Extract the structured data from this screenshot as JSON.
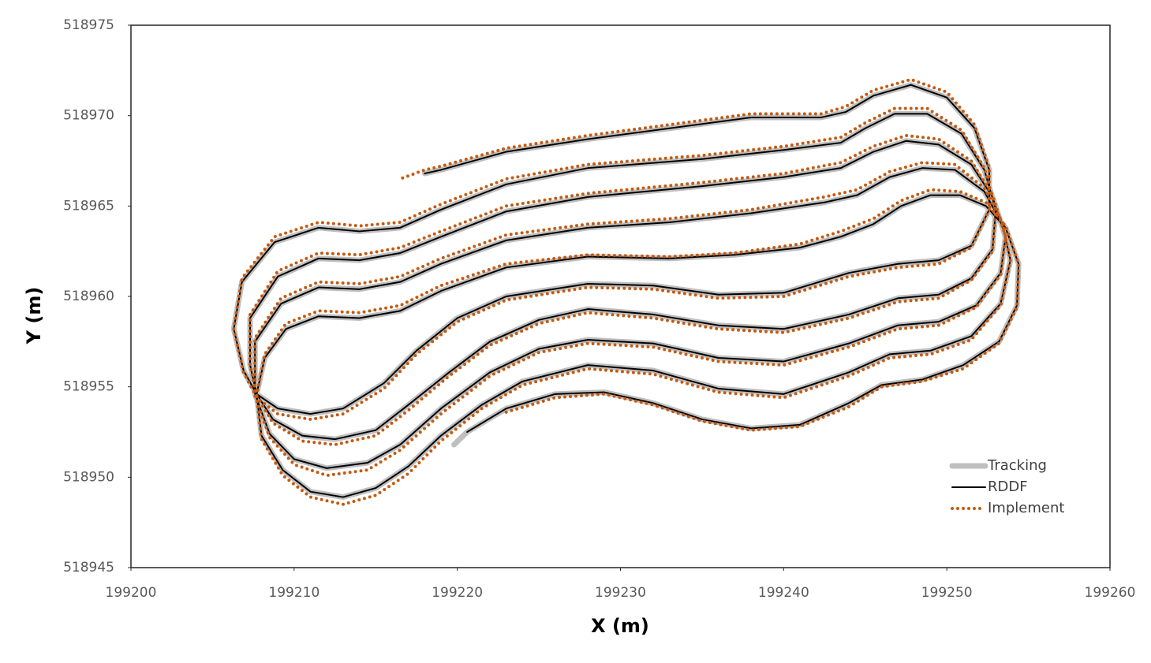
{
  "chart_data": {
    "type": "line",
    "xlabel": "X (m)",
    "ylabel": "Y (m)",
    "xlim": [
      199200,
      199260
    ],
    "ylim": [
      518945,
      518975
    ],
    "xticks": [
      199200,
      199210,
      199220,
      199230,
      199240,
      199250,
      199260
    ],
    "yticks": [
      518945,
      518950,
      518955,
      518960,
      518965,
      518970,
      518975
    ],
    "grid": false,
    "legend": "lower right",
    "x": [
      199219.8,
      199220.6,
      199223,
      199226,
      199229,
      199232,
      199235,
      199238,
      199241,
      199244,
      199246,
      199248.5,
      199251,
      199253.2,
      199254.3,
      199254.4,
      199253.6,
      199252.4,
      199250.8,
      199249,
      199247.2,
      199245.5,
      199243.5,
      199241,
      199237,
      199233,
      199228,
      199223,
      199219,
      199216.5,
      199214,
      199211.5,
      199209.5,
      199208.2,
      199207.7,
      199208,
      199209.3,
      199211,
      199213,
      199215,
      199217,
      199219,
      199221.5,
      199224,
      199228,
      199232,
      199236,
      199240,
      199244,
      199246.5,
      199249,
      199251.5,
      199253.3,
      199253.9,
      199253.4,
      199252.3,
      199250.5,
      199248.5,
      199246.5,
      199244.5,
      199242.5,
      199238,
      199233,
      199228,
      199223,
      199219,
      199216.5,
      199214,
      199211.5,
      199209.2,
      199207.6,
      199207.6,
      199208.5,
      199210,
      199212,
      199214.5,
      199216.5,
      199219,
      199222,
      199225,
      199228,
      199232,
      199236,
      199240,
      199244,
      199247,
      199249.5,
      199251.8,
      199253.3,
      199253.6,
      199252.8,
      199251.5,
      199249.5,
      199247.5,
      199245.5,
      199243.5,
      199240,
      199235,
      199228,
      199223,
      199219,
      199216.5,
      199214,
      199211.5,
      199209,
      199207.3,
      199207.3,
      199207.7,
      199208.7,
      199210.5,
      199212.5,
      199215,
      199217,
      199219.5,
      199222,
      199225,
      199228,
      199232,
      199236,
      199240,
      199244,
      199247,
      199249.5,
      199251.5,
      199252.8,
      199253,
      199252.3,
      199250.9,
      199248.8,
      199246.8,
      199245,
      199243.5,
      199240,
      199235,
      199228,
      199223,
      199219,
      199216.5,
      199214,
      199211.5,
      199208.8,
      199206.8,
      199206.3,
      199206.9,
      199207.7,
      199209,
      199211,
      199213,
      199215.5,
      199217.5,
      199220,
      199223,
      199228,
      199232,
      199236,
      199240,
      199244,
      199247,
      199249.5,
      199251.5,
      199252.6,
      199252.6,
      199251.7,
      199250,
      199247.8,
      199245.5,
      199243.8,
      199242.3,
      199238,
      199233,
      199228,
      199223,
      199219,
      199218,
      199216.5
    ],
    "series": [
      {
        "name": "Tracking",
        "color": "#bfbfbf",
        "linestyle": "solid",
        "values": [
          518951.8,
          518952.5,
          518953.8,
          518954.6,
          518954.7,
          518954.1,
          518953.2,
          518952.7,
          518952.9,
          518954.1,
          518955.1,
          518955.4,
          518956.2,
          518957.5,
          518959.5,
          518961.8,
          518963.8,
          518965,
          518965.6,
          518965.6,
          518965,
          518964,
          518963.3,
          518962.7,
          518962.3,
          518962.1,
          518962.2,
          518961.6,
          518960.3,
          518959.2,
          518958.8,
          518958.9,
          518958.2,
          518956.6,
          518954.6,
          518952.3,
          518950.4,
          518949.2,
          518948.9,
          518949.4,
          518950.6,
          518952.3,
          518954,
          518955.3,
          518956.2,
          518955.9,
          518954.9,
          518954.6,
          518955.8,
          518956.8,
          518957,
          518957.8,
          518959.6,
          518962,
          518964,
          518965.8,
          518967,
          518967.1,
          518966.6,
          518965.6,
          518965.2,
          518964.6,
          518964.1,
          518963.8,
          518963.1,
          518961.8,
          518960.8,
          518960.4,
          518960.5,
          518959.6,
          518957.5,
          518954.6,
          518952.4,
          518951,
          518950.5,
          518950.8,
          518951.8,
          518953.8,
          518955.8,
          518957.1,
          518957.6,
          518957.4,
          518956.6,
          518956.4,
          518957.4,
          518958.4,
          518958.6,
          518959.5,
          518961.3,
          518963.3,
          518965.5,
          518967.3,
          518968.4,
          518968.6,
          518968,
          518967.1,
          518966.6,
          518966.1,
          518965.5,
          518964.7,
          518963.3,
          518962.4,
          518962,
          518962.1,
          518961.1,
          518958.8,
          518956.2,
          518954.6,
          518953.2,
          518952.3,
          518952.1,
          518952.6,
          518954,
          518955.8,
          518957.5,
          518958.7,
          518959.3,
          518959,
          518958.4,
          518958.2,
          518959,
          518959.9,
          518960.1,
          518961,
          518962.6,
          518964.8,
          518967,
          518969,
          518970.1,
          518970.1,
          518969.3,
          518968.5,
          518968.1,
          518967.6,
          518967.1,
          518966.2,
          518964.8,
          518963.8,
          518963.6,
          518963.8,
          518963,
          518960.8,
          518958.2,
          518955.9,
          518954.6,
          518953.8,
          518953.5,
          518953.8,
          518955.2,
          518957,
          518958.8,
          518960,
          518960.7,
          518960.6,
          518960.1,
          518960.2,
          518961.3,
          518961.8,
          518962,
          518962.8,
          518964.8,
          518967,
          518969.3,
          518971,
          518971.7,
          518971.1,
          518970.2,
          518969.9,
          518969.9,
          518969.3,
          518968.7,
          518968,
          518967,
          518966.8,
          null
        ]
      },
      {
        "name": "RDDF",
        "color": "#000000",
        "linestyle": "solid",
        "values": [
          null,
          518952.5,
          518953.8,
          518954.6,
          518954.7,
          518954.1,
          518953.2,
          518952.7,
          518952.9,
          518954.1,
          518955.1,
          518955.4,
          518956.2,
          518957.5,
          518959.5,
          518961.8,
          518963.8,
          518965,
          518965.6,
          518965.6,
          518965,
          518964,
          518963.3,
          518962.7,
          518962.3,
          518962.1,
          518962.2,
          518961.6,
          518960.3,
          518959.2,
          518958.8,
          518958.9,
          518958.2,
          518956.6,
          518954.6,
          518952.3,
          518950.4,
          518949.2,
          518948.9,
          518949.4,
          518950.6,
          518952.3,
          518954,
          518955.3,
          518956.2,
          518955.9,
          518954.9,
          518954.6,
          518955.8,
          518956.8,
          518957,
          518957.8,
          518959.6,
          518962,
          518964,
          518965.8,
          518967,
          518967.1,
          518966.6,
          518965.6,
          518965.2,
          518964.6,
          518964.1,
          518963.8,
          518963.1,
          518961.8,
          518960.8,
          518960.4,
          518960.5,
          518959.6,
          518957.5,
          518954.6,
          518952.4,
          518951,
          518950.5,
          518950.8,
          518951.8,
          518953.8,
          518955.8,
          518957.1,
          518957.6,
          518957.4,
          518956.6,
          518956.4,
          518957.4,
          518958.4,
          518958.6,
          518959.5,
          518961.3,
          518963.3,
          518965.5,
          518967.3,
          518968.4,
          518968.6,
          518968,
          518967.1,
          518966.6,
          518966.1,
          518965.5,
          518964.7,
          518963.3,
          518962.4,
          518962,
          518962.1,
          518961.1,
          518958.8,
          518956.2,
          518954.6,
          518953.2,
          518952.3,
          518952.1,
          518952.6,
          518954,
          518955.8,
          518957.5,
          518958.7,
          518959.3,
          518959,
          518958.4,
          518958.2,
          518959,
          518959.9,
          518960.1,
          518961,
          518962.6,
          518964.8,
          518967,
          518969,
          518970.1,
          518970.1,
          518969.3,
          518968.5,
          518968.1,
          518967.6,
          518967.1,
          518966.2,
          518964.8,
          518963.8,
          518963.6,
          518963.8,
          518963,
          518960.8,
          518958.2,
          518955.9,
          518954.6,
          518953.8,
          518953.5,
          518953.8,
          518955.2,
          518957,
          518958.8,
          518960,
          518960.7,
          518960.6,
          518960.1,
          518960.2,
          518961.3,
          518961.8,
          518962,
          518962.8,
          518964.8,
          518967,
          518969.3,
          518971,
          518971.7,
          518971.1,
          518970.2,
          518969.9,
          518969.9,
          518969.3,
          518968.7,
          518968,
          518967,
          518966.8,
          null
        ]
      },
      {
        "name": "Implement",
        "color": "#c55a11",
        "linestyle": "dotted",
        "values": [
          null,
          null,
          518953.6,
          518954.4,
          518954.6,
          518954,
          518953.1,
          518952.6,
          518952.8,
          518953.9,
          518955,
          518955.3,
          518956,
          518957.4,
          518959.4,
          518961.8,
          518963.9,
          518965.2,
          518965.8,
          518965.9,
          518965.3,
          518964.3,
          518963.6,
          518962.9,
          518962.4,
          518962.2,
          518962.3,
          518961.8,
          518960.6,
          518959.5,
          518959.1,
          518959.2,
          518958.5,
          518956.8,
          518954.5,
          518952.1,
          518950.1,
          518948.9,
          518948.5,
          518949,
          518950.2,
          518952,
          518953.8,
          518955.1,
          518956,
          518955.7,
          518954.7,
          518954.4,
          518955.6,
          518956.6,
          518956.8,
          518957.6,
          518959.5,
          518962,
          518964.1,
          518966,
          518967.3,
          518967.4,
          518966.9,
          518965.9,
          518965.5,
          518964.8,
          518964.3,
          518964,
          518963.4,
          518962.1,
          518961.1,
          518960.7,
          518960.8,
          518959.9,
          518957.7,
          518954.5,
          518952.2,
          518950.7,
          518950.1,
          518950.4,
          518951.5,
          518953.5,
          518955.6,
          518956.9,
          518957.4,
          518957.2,
          518956.4,
          518956.2,
          518957.2,
          518958.2,
          518958.4,
          518959.4,
          518961.2,
          518963.3,
          518965.6,
          518967.5,
          518968.7,
          518968.9,
          518968.3,
          518967.4,
          518966.8,
          518966.3,
          518965.7,
          518965,
          518963.6,
          518962.7,
          518962.3,
          518962.4,
          518961.4,
          518959,
          518956.2,
          518954.5,
          518953,
          518952,
          518951.8,
          518952.3,
          518953.7,
          518955.6,
          518957.3,
          518958.5,
          518959.1,
          518958.8,
          518958.2,
          518958,
          518958.8,
          518959.7,
          518959.9,
          518960.9,
          518962.5,
          518964.8,
          518967.1,
          518969.2,
          518970.4,
          518970.4,
          518969.6,
          518968.8,
          518968.3,
          518967.8,
          518967.3,
          518966.5,
          518965.1,
          518964.1,
          518963.9,
          518964.1,
          518963.3,
          518961,
          518958.2,
          518955.8,
          518954.4,
          518953.5,
          518953.2,
          518953.5,
          518954.9,
          518956.8,
          518958.6,
          518959.8,
          518960.5,
          518960.4,
          518959.9,
          518960,
          518961.1,
          518961.6,
          518961.8,
          518962.7,
          518964.8,
          518967.1,
          518969.5,
          518971.3,
          518972,
          518971.4,
          518970.5,
          518970.1,
          518970.1,
          518969.5,
          518968.9,
          518968.2,
          518967.2,
          518967,
          518966.5
        ]
      }
    ]
  }
}
